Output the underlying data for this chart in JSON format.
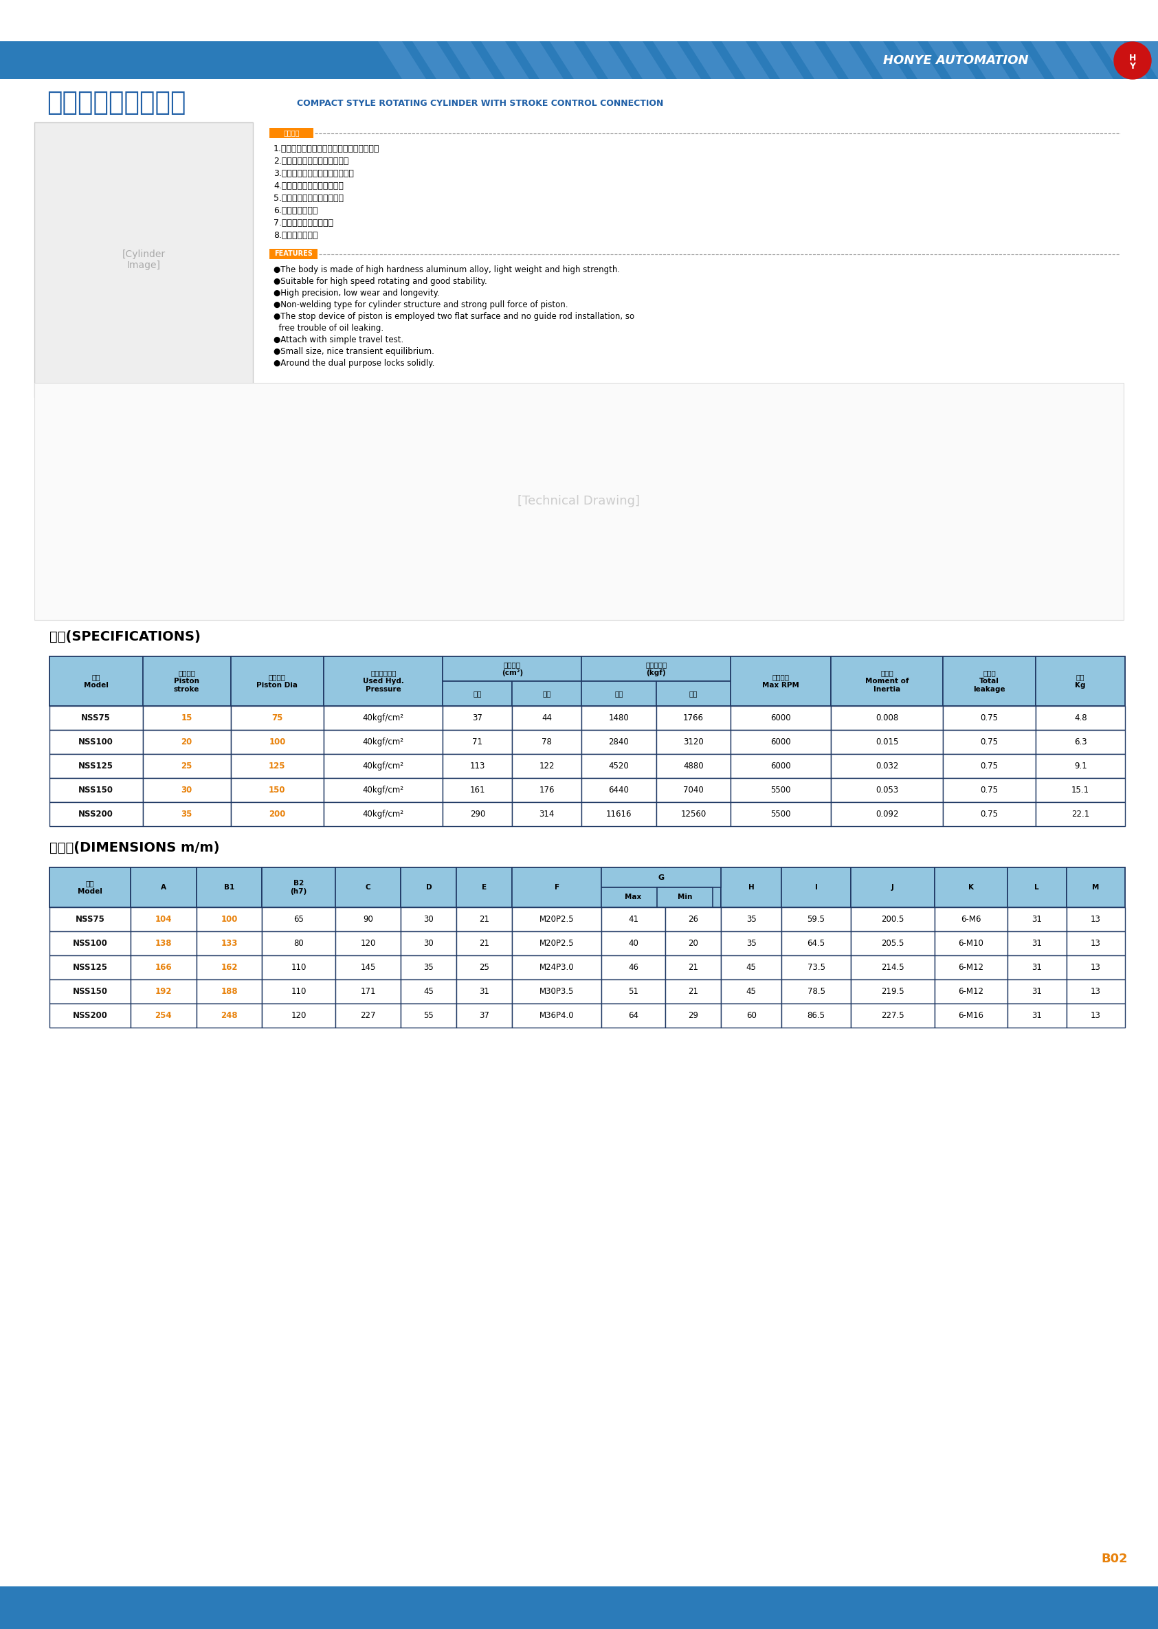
{
  "title_zh": "油壓中實感應迴轉缸",
  "title_en": "COMPACT STYLE ROTATING CYLINDER WITH STROKE CONTROL CONNECTION",
  "brand": "HONYE AUTOMATION",
  "page_code": "B02",
  "header_bg": "#2B7BB9",
  "features_zh": [
    "1.本體採高強度鋁合金製造，質輕，強度高。",
    "2.適用於高速迴轉，穩定性佳。",
    "3.精度高，磨耗少，使用壽命長。",
    "4.非焊接式，活塞拉力特強。",
    "5.活塞止轉部分，內漏油小。",
    "6.附有行程檢測。",
    "7.輕薄短小，動平衡佳。",
    "8.前後鎖固兩用。"
  ],
  "features_en": [
    "●The body is made of high hardness aluminum alloy, light weight and high strength.",
    "●Suitable for high speed rotating and good stability.",
    "●High precision, low wear and longevity.",
    "●Non-welding type for cylinder structure and strong pull force of piston.",
    "●The stop device of piston is employed two flat surface and no guide rod installation, so",
    "  free trouble of oil leaking.",
    "●Attach with simple travel test.",
    "●Small size, nice transient equilibrium.",
    "●Around the dual purpose locks solidly."
  ],
  "spec_title": "規格(SPECIFICATIONS)",
  "spec_data": [
    [
      "NSS75",
      "15",
      "75",
      "40kgf/cm²",
      "37",
      "44",
      "1480",
      "1766",
      "6000",
      "0.008",
      "0.75",
      "4.8"
    ],
    [
      "NSS100",
      "20",
      "100",
      "40kgf/cm²",
      "71",
      "78",
      "2840",
      "3120",
      "6000",
      "0.015",
      "0.75",
      "6.3"
    ],
    [
      "NSS125",
      "25",
      "125",
      "40kgf/cm²",
      "113",
      "122",
      "4520",
      "4880",
      "6000",
      "0.032",
      "0.75",
      "9.1"
    ],
    [
      "NSS150",
      "30",
      "150",
      "40kgf/cm²",
      "161",
      "176",
      "6440",
      "7040",
      "5500",
      "0.053",
      "0.75",
      "15.1"
    ],
    [
      "NSS200",
      "35",
      "200",
      "40kgf/cm²",
      "290",
      "314",
      "11616",
      "12560",
      "5500",
      "0.092",
      "0.75",
      "22.1"
    ]
  ],
  "dim_title": "尺寸表(DIMENSIONS m/m)",
  "dim_data": [
    [
      "NSS75",
      "104",
      "100",
      "65",
      "90",
      "30",
      "21",
      "M20P2.5",
      "41",
      "26",
      "35",
      "59.5",
      "200.5",
      "6-M6",
      "31",
      "13"
    ],
    [
      "NSS100",
      "138",
      "133",
      "80",
      "120",
      "30",
      "21",
      "M20P2.5",
      "40",
      "20",
      "35",
      "64.5",
      "205.5",
      "6-M10",
      "31",
      "13"
    ],
    [
      "NSS125",
      "166",
      "162",
      "110",
      "145",
      "35",
      "25",
      "M24P3.0",
      "46",
      "21",
      "45",
      "73.5",
      "214.5",
      "6-M12",
      "31",
      "13"
    ],
    [
      "NSS150",
      "192",
      "188",
      "110",
      "171",
      "45",
      "31",
      "M30P3.5",
      "51",
      "21",
      "45",
      "78.5",
      "219.5",
      "6-M12",
      "31",
      "13"
    ],
    [
      "NSS200",
      "254",
      "248",
      "120",
      "227",
      "55",
      "37",
      "M36P4.0",
      "64",
      "29",
      "60",
      "86.5",
      "227.5",
      "6-M16",
      "31",
      "13"
    ]
  ],
  "table_header_bg": "#93C6E0",
  "table_border": "#1F3864",
  "orange_color": "#E8820C",
  "blue_color": "#1F5FA6",
  "label_orange": "#FF8800"
}
